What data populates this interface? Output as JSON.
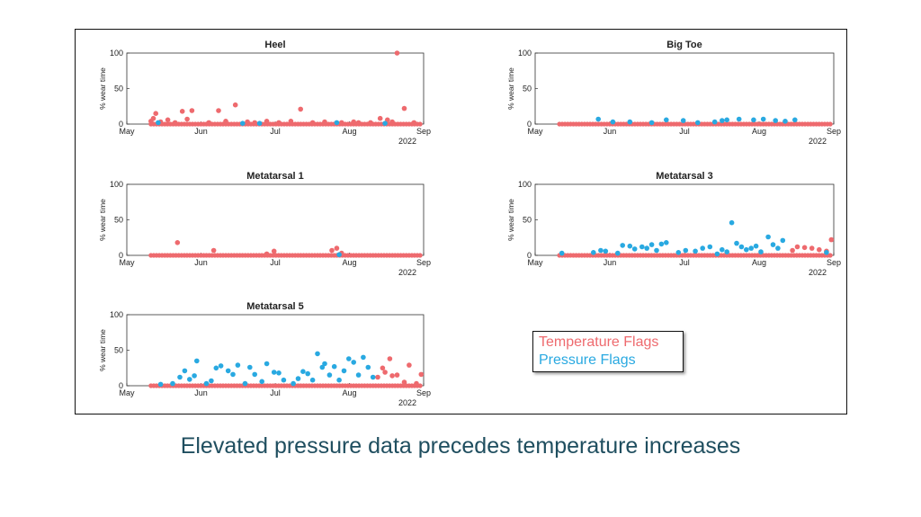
{
  "caption": "Elevated pressure data precedes temperature increases",
  "legend": {
    "items": [
      {
        "label": "Temperature Flags",
        "color": "#ee6a6e"
      },
      {
        "label": "Pressure Flags",
        "color": "#29a9e1"
      }
    ]
  },
  "chart_data": [
    {
      "type": "scatter",
      "title": "Heel",
      "ylabel": "% wear time",
      "ylim": [
        0,
        100
      ],
      "yticks": [
        0,
        50,
        100
      ],
      "xticks": [
        "May",
        "Jun",
        "Jul",
        "Aug",
        "Sep"
      ],
      "xsub": "2022",
      "xrange": [
        "2022-05-01",
        "2022-09-01"
      ],
      "series": [
        {
          "name": "Temperature Flags",
          "color": "#ee6a6e",
          "x": [
            "2022-05-11",
            "2022-05-12",
            "2022-05-13",
            "2022-05-15",
            "2022-05-18",
            "2022-05-21",
            "2022-05-24",
            "2022-05-26",
            "2022-05-28",
            "2022-06-04",
            "2022-06-08",
            "2022-06-11",
            "2022-06-15",
            "2022-06-20",
            "2022-06-23",
            "2022-06-28",
            "2022-07-03",
            "2022-07-08",
            "2022-07-12",
            "2022-07-17",
            "2022-07-22",
            "2022-07-29",
            "2022-08-03",
            "2022-08-05",
            "2022-08-10",
            "2022-08-14",
            "2022-08-17",
            "2022-08-19",
            "2022-08-21",
            "2022-08-24",
            "2022-08-28"
          ],
          "y": [
            4,
            8,
            15,
            3,
            6,
            2,
            18,
            7,
            19,
            2,
            19,
            4,
            27,
            3,
            2,
            4,
            2,
            4,
            21,
            2,
            3,
            2,
            3,
            2,
            2,
            8,
            6,
            3,
            100,
            22,
            2
          ]
        },
        {
          "name": "Pressure Flags",
          "color": "#29a9e1",
          "x": [
            "2022-05-14",
            "2022-06-18",
            "2022-06-25",
            "2022-07-27",
            "2022-08-16"
          ],
          "y": [
            2,
            1,
            1,
            2,
            1
          ]
        }
      ]
    },
    {
      "type": "scatter",
      "title": "Big Toe",
      "ylabel": "% wear time",
      "ylim": [
        0,
        100
      ],
      "yticks": [
        0,
        50,
        100
      ],
      "xticks": [
        "May",
        "Jun",
        "Jul",
        "Aug",
        "Sep"
      ],
      "xsub": "2022",
      "xrange": [
        "2022-05-01",
        "2022-09-01"
      ],
      "series": [
        {
          "name": "Pressure Flags",
          "color": "#29a9e1",
          "x": [
            "2022-05-27",
            "2022-06-02",
            "2022-06-09",
            "2022-06-18",
            "2022-06-24",
            "2022-07-01",
            "2022-07-07",
            "2022-07-14",
            "2022-07-17",
            "2022-07-19",
            "2022-07-24",
            "2022-07-30",
            "2022-08-03",
            "2022-08-08",
            "2022-08-12",
            "2022-08-16"
          ],
          "y": [
            7,
            3,
            3,
            2,
            6,
            5,
            2,
            3,
            5,
            6,
            7,
            6,
            7,
            5,
            4,
            6
          ]
        }
      ]
    },
    {
      "type": "scatter",
      "title": "Metatarsal 1",
      "ylabel": "% wear time",
      "ylim": [
        0,
        100
      ],
      "yticks": [
        0,
        50,
        100
      ],
      "xticks": [
        "May",
        "Jun",
        "Jul",
        "Aug",
        "Sep"
      ],
      "xsub": "2022",
      "xrange": [
        "2022-05-01",
        "2022-09-01"
      ],
      "series": [
        {
          "name": "Temperature Flags",
          "color": "#ee6a6e",
          "x": [
            "2022-05-22",
            "2022-06-06",
            "2022-06-28",
            "2022-07-01",
            "2022-07-25",
            "2022-07-27",
            "2022-07-29"
          ],
          "y": [
            18,
            7,
            2,
            6,
            7,
            10,
            3
          ]
        },
        {
          "name": "Pressure Flags",
          "color": "#29a9e1",
          "x": [
            "2022-07-28"
          ],
          "y": [
            1
          ]
        }
      ]
    },
    {
      "type": "scatter",
      "title": "Metatarsal 3",
      "ylabel": "% wear time",
      "ylim": [
        0,
        100
      ],
      "yticks": [
        0,
        50,
        100
      ],
      "xticks": [
        "May",
        "Jun",
        "Jul",
        "Aug",
        "Sep"
      ],
      "xsub": "2022",
      "xrange": [
        "2022-05-01",
        "2022-09-01"
      ],
      "series": [
        {
          "name": "Temperature Flags",
          "color": "#ee6a6e",
          "x": [
            "2022-08-15",
            "2022-08-17",
            "2022-08-20",
            "2022-08-23",
            "2022-08-26",
            "2022-08-29",
            "2022-08-31"
          ],
          "y": [
            7,
            12,
            11,
            10,
            8,
            6,
            22
          ]
        },
        {
          "name": "Pressure Flags",
          "color": "#29a9e1",
          "x": [
            "2022-05-12",
            "2022-05-25",
            "2022-05-28",
            "2022-05-30",
            "2022-06-04",
            "2022-06-06",
            "2022-06-09",
            "2022-06-11",
            "2022-06-14",
            "2022-06-16",
            "2022-06-18",
            "2022-06-20",
            "2022-06-22",
            "2022-06-24",
            "2022-06-29",
            "2022-07-02",
            "2022-07-06",
            "2022-07-09",
            "2022-07-12",
            "2022-07-15",
            "2022-07-17",
            "2022-07-19",
            "2022-07-21",
            "2022-07-23",
            "2022-07-25",
            "2022-07-27",
            "2022-07-29",
            "2022-07-31",
            "2022-08-02",
            "2022-08-05",
            "2022-08-07",
            "2022-08-09",
            "2022-08-11",
            "2022-08-29"
          ],
          "y": [
            3,
            4,
            7,
            6,
            3,
            14,
            13,
            9,
            12,
            10,
            15,
            7,
            16,
            18,
            4,
            7,
            6,
            10,
            12,
            2,
            8,
            5,
            46,
            17,
            12,
            8,
            10,
            13,
            5,
            26,
            15,
            10,
            21,
            4
          ]
        }
      ]
    },
    {
      "type": "scatter",
      "title": "Metatarsal 5",
      "ylabel": "% wear time",
      "ylim": [
        0,
        100
      ],
      "yticks": [
        0,
        50,
        100
      ],
      "xticks": [
        "May",
        "Jun",
        "Jul",
        "Aug",
        "Sep"
      ],
      "xsub": "2022",
      "xrange": [
        "2022-05-01",
        "2022-09-01"
      ],
      "series": [
        {
          "name": "Temperature Flags",
          "color": "#ee6a6e",
          "x": [
            "2022-08-13",
            "2022-08-15",
            "2022-08-16",
            "2022-08-18",
            "2022-08-19",
            "2022-08-21",
            "2022-08-24",
            "2022-08-26",
            "2022-08-29",
            "2022-08-31"
          ],
          "y": [
            12,
            25,
            19,
            38,
            14,
            15,
            5,
            29,
            3,
            16
          ]
        },
        {
          "name": "Pressure Flags",
          "color": "#29a9e1",
          "x": [
            "2022-05-15",
            "2022-05-20",
            "2022-05-23",
            "2022-05-25",
            "2022-05-27",
            "2022-05-29",
            "2022-05-30",
            "2022-06-03",
            "2022-06-05",
            "2022-06-07",
            "2022-06-09",
            "2022-06-12",
            "2022-06-14",
            "2022-06-16",
            "2022-06-19",
            "2022-06-21",
            "2022-06-23",
            "2022-06-26",
            "2022-06-28",
            "2022-07-01",
            "2022-07-03",
            "2022-07-05",
            "2022-07-09",
            "2022-07-11",
            "2022-07-13",
            "2022-07-15",
            "2022-07-17",
            "2022-07-19",
            "2022-07-21",
            "2022-07-22",
            "2022-07-24",
            "2022-07-26",
            "2022-07-28",
            "2022-07-30",
            "2022-08-01",
            "2022-08-03",
            "2022-08-05",
            "2022-08-07",
            "2022-08-09",
            "2022-08-11"
          ],
          "y": [
            2,
            3,
            12,
            21,
            9,
            14,
            35,
            3,
            7,
            25,
            28,
            21,
            16,
            29,
            3,
            26,
            16,
            6,
            31,
            19,
            18,
            8,
            3,
            10,
            20,
            17,
            8,
            45,
            26,
            31,
            15,
            27,
            8,
            21,
            38,
            33,
            15,
            40,
            26,
            12
          ]
        }
      ]
    }
  ]
}
